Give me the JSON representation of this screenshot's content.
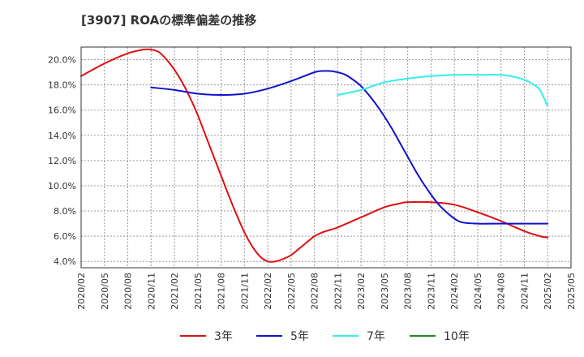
{
  "chart_data": {
    "type": "line",
    "title": "[3907]  ROAの標準偏差の推移",
    "xlabel": "",
    "ylabel": "",
    "ylim": [
      3.5,
      21.0
    ],
    "grid": true,
    "legend_position": "bottom",
    "y_ticks": [
      4.0,
      6.0,
      8.0,
      10.0,
      12.0,
      14.0,
      16.0,
      18.0,
      20.0
    ],
    "y_tick_labels": [
      "4.0%",
      "6.0%",
      "8.0%",
      "10.0%",
      "12.0%",
      "14.0%",
      "16.0%",
      "18.0%",
      "20.0%"
    ],
    "x_tick_labels": [
      "2020/02",
      "2020/05",
      "2020/08",
      "2020/11",
      "2021/02",
      "2021/05",
      "2021/08",
      "2021/11",
      "2022/02",
      "2022/05",
      "2022/08",
      "2022/11",
      "2023/02",
      "2023/05",
      "2023/08",
      "2023/11",
      "2024/02",
      "2024/05",
      "2024/08",
      "2024/11",
      "2025/02",
      "2025/05"
    ],
    "series": [
      {
        "name": "3年",
        "color": "#dd1111",
        "points": [
          [
            "2020/02",
            18.7
          ],
          [
            "2020/05",
            19.7
          ],
          [
            "2020/08",
            20.5
          ],
          [
            "2020/10",
            20.8
          ],
          [
            "2020/11",
            20.8
          ],
          [
            "2020/12",
            20.6
          ],
          [
            "2021/01",
            20.0
          ],
          [
            "2021/02",
            19.2
          ],
          [
            "2021/03",
            18.2
          ],
          [
            "2021/04",
            17.0
          ],
          [
            "2021/05",
            15.6
          ],
          [
            "2021/06",
            14.0
          ],
          [
            "2021/07",
            12.4
          ],
          [
            "2021/08",
            10.8
          ],
          [
            "2021/09",
            9.2
          ],
          [
            "2021/10",
            7.7
          ],
          [
            "2021/11",
            6.3
          ],
          [
            "2021/12",
            5.2
          ],
          [
            "2022/01",
            4.4
          ],
          [
            "2022/02",
            4.0
          ],
          [
            "2022/03",
            4.0
          ],
          [
            "2022/04",
            4.2
          ],
          [
            "2022/05",
            4.5
          ],
          [
            "2022/06",
            5.0
          ],
          [
            "2022/07",
            5.5
          ],
          [
            "2022/08",
            6.0
          ],
          [
            "2022/09",
            6.3
          ],
          [
            "2022/10",
            6.5
          ],
          [
            "2022/11",
            6.7
          ],
          [
            "2023/02",
            7.5
          ],
          [
            "2023/05",
            8.3
          ],
          [
            "2023/07",
            8.6
          ],
          [
            "2023/08",
            8.7
          ],
          [
            "2023/11",
            8.7
          ],
          [
            "2024/02",
            8.5
          ],
          [
            "2024/05",
            7.9
          ],
          [
            "2024/08",
            7.2
          ],
          [
            "2024/11",
            6.4
          ],
          [
            "2025/01",
            6.0
          ],
          [
            "2025/02",
            5.9
          ]
        ]
      },
      {
        "name": "5年",
        "color": "#1111cc",
        "points": [
          [
            "2020/11",
            17.8
          ],
          [
            "2021/02",
            17.6
          ],
          [
            "2021/05",
            17.3
          ],
          [
            "2021/08",
            17.2
          ],
          [
            "2021/11",
            17.3
          ],
          [
            "2022/02",
            17.7
          ],
          [
            "2022/05",
            18.3
          ],
          [
            "2022/08",
            19.0
          ],
          [
            "2022/09",
            19.1
          ],
          [
            "2022/10",
            19.1
          ],
          [
            "2022/11",
            19.0
          ],
          [
            "2022/12",
            18.8
          ],
          [
            "2023/01",
            18.4
          ],
          [
            "2023/02",
            17.9
          ],
          [
            "2023/03",
            17.2
          ],
          [
            "2023/04",
            16.4
          ],
          [
            "2023/05",
            15.5
          ],
          [
            "2023/06",
            14.5
          ],
          [
            "2023/07",
            13.4
          ],
          [
            "2023/08",
            12.3
          ],
          [
            "2023/09",
            11.2
          ],
          [
            "2023/10",
            10.2
          ],
          [
            "2023/11",
            9.3
          ],
          [
            "2023/12",
            8.5
          ],
          [
            "2024/01",
            7.9
          ],
          [
            "2024/02",
            7.4
          ],
          [
            "2024/03",
            7.1
          ],
          [
            "2024/05",
            7.0
          ],
          [
            "2024/08",
            7.0
          ],
          [
            "2024/11",
            7.0
          ],
          [
            "2025/02",
            7.0
          ]
        ]
      },
      {
        "name": "7年",
        "color": "#33eeee",
        "points": [
          [
            "2022/11",
            17.2
          ],
          [
            "2023/02",
            17.6
          ],
          [
            "2023/05",
            18.2
          ],
          [
            "2023/08",
            18.5
          ],
          [
            "2023/11",
            18.7
          ],
          [
            "2024/02",
            18.8
          ],
          [
            "2024/05",
            18.8
          ],
          [
            "2024/08",
            18.8
          ],
          [
            "2024/10",
            18.6
          ],
          [
            "2024/11",
            18.4
          ],
          [
            "2024/12",
            18.1
          ],
          [
            "2025/01",
            17.6
          ],
          [
            "2025/02",
            16.3
          ]
        ]
      },
      {
        "name": "10年",
        "color": "#228822",
        "points": []
      }
    ]
  }
}
